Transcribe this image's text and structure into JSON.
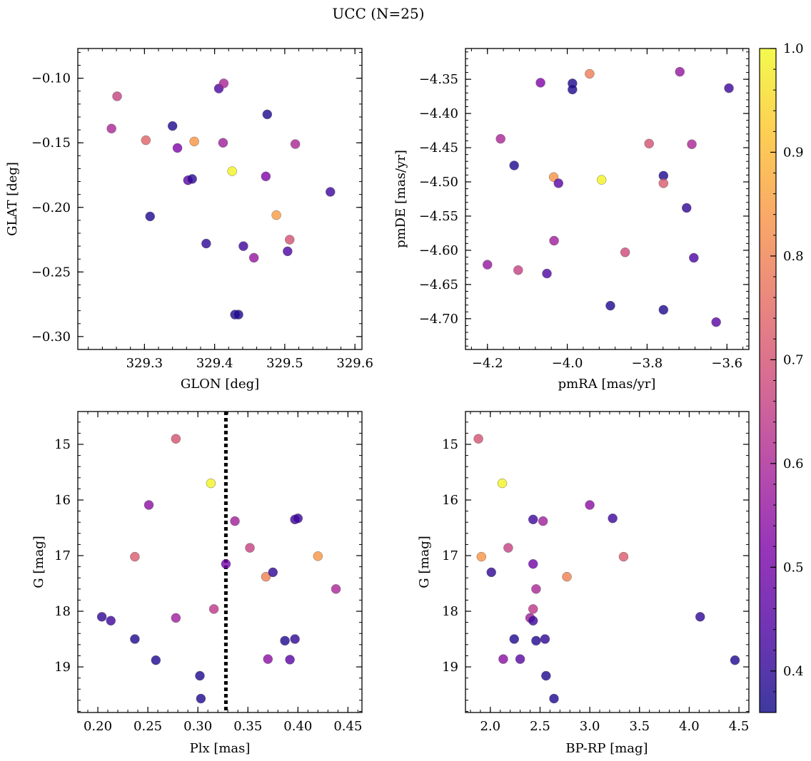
{
  "figure": {
    "suptitle": "UCC (N=25)"
  },
  "colorbar": {
    "range": [
      0.36,
      1.0
    ],
    "ticks": [
      "0.4",
      "0.5",
      "0.6",
      "0.7",
      "0.8",
      "0.9",
      "1.0"
    ],
    "tick_values": [
      0.4,
      0.5,
      0.6,
      0.7,
      0.8,
      0.9,
      1.0
    ],
    "colormap": "plasma"
  },
  "chart_data": [
    {
      "type": "scatter",
      "xlabel": "GLON [deg]",
      "ylabel": "GLAT [deg]",
      "xlim": [
        329.205,
        329.61
      ],
      "ylim": [
        -0.31,
        -0.077
      ],
      "y_inverted": false,
      "xticks": [
        "329.3",
        "329.4",
        "329.5",
        "329.6"
      ],
      "xtick_values": [
        329.3,
        329.4,
        329.5,
        329.6
      ],
      "yticks": [
        "−0.10",
        "−0.15",
        "−0.20",
        "−0.25",
        "−0.30"
      ],
      "ytick_values": [
        -0.1,
        -0.15,
        -0.2,
        -0.25,
        -0.3
      ],
      "points": [
        {
          "x": 329.261,
          "y": -0.114,
          "c": 0.66
        },
        {
          "x": 329.253,
          "y": -0.139,
          "c": 0.6
        },
        {
          "x": 329.302,
          "y": -0.148,
          "c": 0.74
        },
        {
          "x": 329.34,
          "y": -0.137,
          "c": 0.38
        },
        {
          "x": 329.347,
          "y": -0.154,
          "c": 0.52
        },
        {
          "x": 329.371,
          "y": -0.149,
          "c": 0.84
        },
        {
          "x": 329.406,
          "y": -0.108,
          "c": 0.44
        },
        {
          "x": 329.413,
          "y": -0.104,
          "c": 0.6
        },
        {
          "x": 329.412,
          "y": -0.15,
          "c": 0.58
        },
        {
          "x": 329.475,
          "y": -0.128,
          "c": 0.38
        },
        {
          "x": 329.515,
          "y": -0.151,
          "c": 0.6
        },
        {
          "x": 329.425,
          "y": -0.172,
          "c": 0.99
        },
        {
          "x": 329.362,
          "y": -0.179,
          "c": 0.46
        },
        {
          "x": 329.368,
          "y": -0.178,
          "c": 0.4
        },
        {
          "x": 329.473,
          "y": -0.176,
          "c": 0.52
        },
        {
          "x": 329.565,
          "y": -0.188,
          "c": 0.42
        },
        {
          "x": 329.308,
          "y": -0.207,
          "c": 0.38
        },
        {
          "x": 329.488,
          "y": -0.206,
          "c": 0.85
        },
        {
          "x": 329.388,
          "y": -0.228,
          "c": 0.4
        },
        {
          "x": 329.441,
          "y": -0.23,
          "c": 0.42
        },
        {
          "x": 329.456,
          "y": -0.239,
          "c": 0.56
        },
        {
          "x": 329.507,
          "y": -0.225,
          "c": 0.7
        },
        {
          "x": 329.504,
          "y": -0.234,
          "c": 0.44
        },
        {
          "x": 329.429,
          "y": -0.283,
          "c": 0.38
        },
        {
          "x": 329.434,
          "y": -0.283,
          "c": 0.38
        }
      ]
    },
    {
      "type": "scatter",
      "xlabel": "pmRA [mas/yr]",
      "ylabel": "pmDE [mas/yr]",
      "xlim": [
        -4.255,
        -3.545
      ],
      "ylim": [
        -4.745,
        -4.305
      ],
      "y_inverted": false,
      "xticks": [
        "−4.2",
        "−4.0",
        "−3.8",
        "−3.6"
      ],
      "xtick_values": [
        -4.2,
        -4.0,
        -3.8,
        -3.6
      ],
      "yticks": [
        "−4.35",
        "−4.40",
        "−4.45",
        "−4.50",
        "−4.55",
        "−4.60",
        "−4.65",
        "−4.70"
      ],
      "ytick_values": [
        -4.35,
        -4.4,
        -4.45,
        -4.5,
        -4.55,
        -4.6,
        -4.65,
        -4.7
      ],
      "points": [
        {
          "x": -4.067,
          "y": -4.355,
          "c": 0.52
        },
        {
          "x": -3.987,
          "y": -4.356,
          "c": 0.38
        },
        {
          "x": -3.987,
          "y": -4.365,
          "c": 0.38
        },
        {
          "x": -3.944,
          "y": -4.342,
          "c": 0.79
        },
        {
          "x": -3.718,
          "y": -4.339,
          "c": 0.56
        },
        {
          "x": -3.595,
          "y": -4.363,
          "c": 0.42
        },
        {
          "x": -4.167,
          "y": -4.437,
          "c": 0.6
        },
        {
          "x": -4.133,
          "y": -4.476,
          "c": 0.38
        },
        {
          "x": -3.795,
          "y": -4.444,
          "c": 0.7
        },
        {
          "x": -3.688,
          "y": -4.445,
          "c": 0.6
        },
        {
          "x": -4.034,
          "y": -4.493,
          "c": 0.84
        },
        {
          "x": -4.022,
          "y": -4.502,
          "c": 0.46
        },
        {
          "x": -3.914,
          "y": -4.497,
          "c": 0.99
        },
        {
          "x": -3.759,
          "y": -4.491,
          "c": 0.38
        },
        {
          "x": -3.759,
          "y": -4.502,
          "c": 0.72
        },
        {
          "x": -3.701,
          "y": -4.538,
          "c": 0.4
        },
        {
          "x": -4.033,
          "y": -4.586,
          "c": 0.58
        },
        {
          "x": -3.855,
          "y": -4.603,
          "c": 0.68
        },
        {
          "x": -4.2,
          "y": -4.621,
          "c": 0.56
        },
        {
          "x": -4.123,
          "y": -4.629,
          "c": 0.66
        },
        {
          "x": -4.051,
          "y": -4.634,
          "c": 0.44
        },
        {
          "x": -3.683,
          "y": -4.611,
          "c": 0.44
        },
        {
          "x": -3.892,
          "y": -4.681,
          "c": 0.38
        },
        {
          "x": -3.759,
          "y": -4.687,
          "c": 0.38
        },
        {
          "x": -3.627,
          "y": -4.705,
          "c": 0.46
        }
      ]
    },
    {
      "type": "scatter",
      "xlabel": "Plx [mas]",
      "ylabel": "G [mag]",
      "xlim": [
        0.18,
        0.464
      ],
      "ylim": [
        19.82,
        14.41
      ],
      "y_inverted": true,
      "xticks": [
        "0.20",
        "0.25",
        "0.30",
        "0.35",
        "0.40",
        "0.45"
      ],
      "xtick_values": [
        0.2,
        0.25,
        0.3,
        0.35,
        0.4,
        0.45
      ],
      "yticks": [
        "15",
        "16",
        "17",
        "18",
        "19"
      ],
      "ytick_values": [
        15,
        16,
        17,
        18,
        19
      ],
      "vline": {
        "x": 0.328,
        "style": "dotted"
      },
      "points": [
        {
          "x": 0.278,
          "y": 14.9,
          "c": 0.7
        },
        {
          "x": 0.313,
          "y": 15.7,
          "c": 0.99
        },
        {
          "x": 0.251,
          "y": 16.09,
          "c": 0.54
        },
        {
          "x": 0.337,
          "y": 16.38,
          "c": 0.58
        },
        {
          "x": 0.397,
          "y": 16.35,
          "c": 0.42
        },
        {
          "x": 0.4,
          "y": 16.33,
          "c": 0.42
        },
        {
          "x": 0.237,
          "y": 17.02,
          "c": 0.72
        },
        {
          "x": 0.352,
          "y": 16.86,
          "c": 0.66
        },
        {
          "x": 0.42,
          "y": 17.01,
          "c": 0.84
        },
        {
          "x": 0.328,
          "y": 17.15,
          "c": 0.5
        },
        {
          "x": 0.368,
          "y": 17.38,
          "c": 0.8
        },
        {
          "x": 0.375,
          "y": 17.3,
          "c": 0.4
        },
        {
          "x": 0.438,
          "y": 17.6,
          "c": 0.6
        },
        {
          "x": 0.316,
          "y": 17.96,
          "c": 0.64
        },
        {
          "x": 0.278,
          "y": 18.12,
          "c": 0.58
        },
        {
          "x": 0.204,
          "y": 18.1,
          "c": 0.4
        },
        {
          "x": 0.213,
          "y": 18.17,
          "c": 0.42
        },
        {
          "x": 0.237,
          "y": 18.5,
          "c": 0.38
        },
        {
          "x": 0.387,
          "y": 18.53,
          "c": 0.38
        },
        {
          "x": 0.397,
          "y": 18.5,
          "c": 0.4
        },
        {
          "x": 0.258,
          "y": 18.88,
          "c": 0.38
        },
        {
          "x": 0.37,
          "y": 18.86,
          "c": 0.54
        },
        {
          "x": 0.392,
          "y": 18.87,
          "c": 0.46
        },
        {
          "x": 0.302,
          "y": 19.16,
          "c": 0.38
        },
        {
          "x": 0.303,
          "y": 19.57,
          "c": 0.38
        }
      ]
    },
    {
      "type": "scatter",
      "xlabel": "BP-RP [mag]",
      "ylabel": "G [mag]",
      "xlim": [
        1.75,
        4.6
      ],
      "ylim": [
        19.82,
        14.41
      ],
      "y_inverted": true,
      "xticks": [
        "2.0",
        "2.5",
        "3.0",
        "3.5",
        "4.0",
        "4.5"
      ],
      "xtick_values": [
        2.0,
        2.5,
        3.0,
        3.5,
        4.0,
        4.5
      ],
      "yticks": [
        "15",
        "16",
        "17",
        "18",
        "19"
      ],
      "ytick_values": [
        15,
        16,
        17,
        18,
        19
      ],
      "points": [
        {
          "x": 1.88,
          "y": 14.9,
          "c": 0.7
        },
        {
          "x": 2.12,
          "y": 15.7,
          "c": 0.99
        },
        {
          "x": 3.0,
          "y": 16.09,
          "c": 0.54
        },
        {
          "x": 3.23,
          "y": 16.33,
          "c": 0.42
        },
        {
          "x": 2.43,
          "y": 16.35,
          "c": 0.42
        },
        {
          "x": 2.53,
          "y": 16.38,
          "c": 0.58
        },
        {
          "x": 1.91,
          "y": 17.02,
          "c": 0.84
        },
        {
          "x": 2.18,
          "y": 16.86,
          "c": 0.66
        },
        {
          "x": 3.34,
          "y": 17.02,
          "c": 0.72
        },
        {
          "x": 2.43,
          "y": 17.15,
          "c": 0.5
        },
        {
          "x": 2.01,
          "y": 17.3,
          "c": 0.4
        },
        {
          "x": 2.77,
          "y": 17.38,
          "c": 0.8
        },
        {
          "x": 2.46,
          "y": 17.6,
          "c": 0.6
        },
        {
          "x": 2.43,
          "y": 17.96,
          "c": 0.64
        },
        {
          "x": 2.4,
          "y": 18.12,
          "c": 0.58
        },
        {
          "x": 2.43,
          "y": 18.17,
          "c": 0.42
        },
        {
          "x": 4.11,
          "y": 18.1,
          "c": 0.4
        },
        {
          "x": 2.24,
          "y": 18.5,
          "c": 0.38
        },
        {
          "x": 2.46,
          "y": 18.53,
          "c": 0.38
        },
        {
          "x": 2.55,
          "y": 18.5,
          "c": 0.4
        },
        {
          "x": 2.13,
          "y": 18.86,
          "c": 0.54
        },
        {
          "x": 2.3,
          "y": 18.86,
          "c": 0.46
        },
        {
          "x": 4.46,
          "y": 18.88,
          "c": 0.38
        },
        {
          "x": 2.56,
          "y": 19.16,
          "c": 0.38
        },
        {
          "x": 2.64,
          "y": 19.57,
          "c": 0.38
        }
      ]
    }
  ]
}
